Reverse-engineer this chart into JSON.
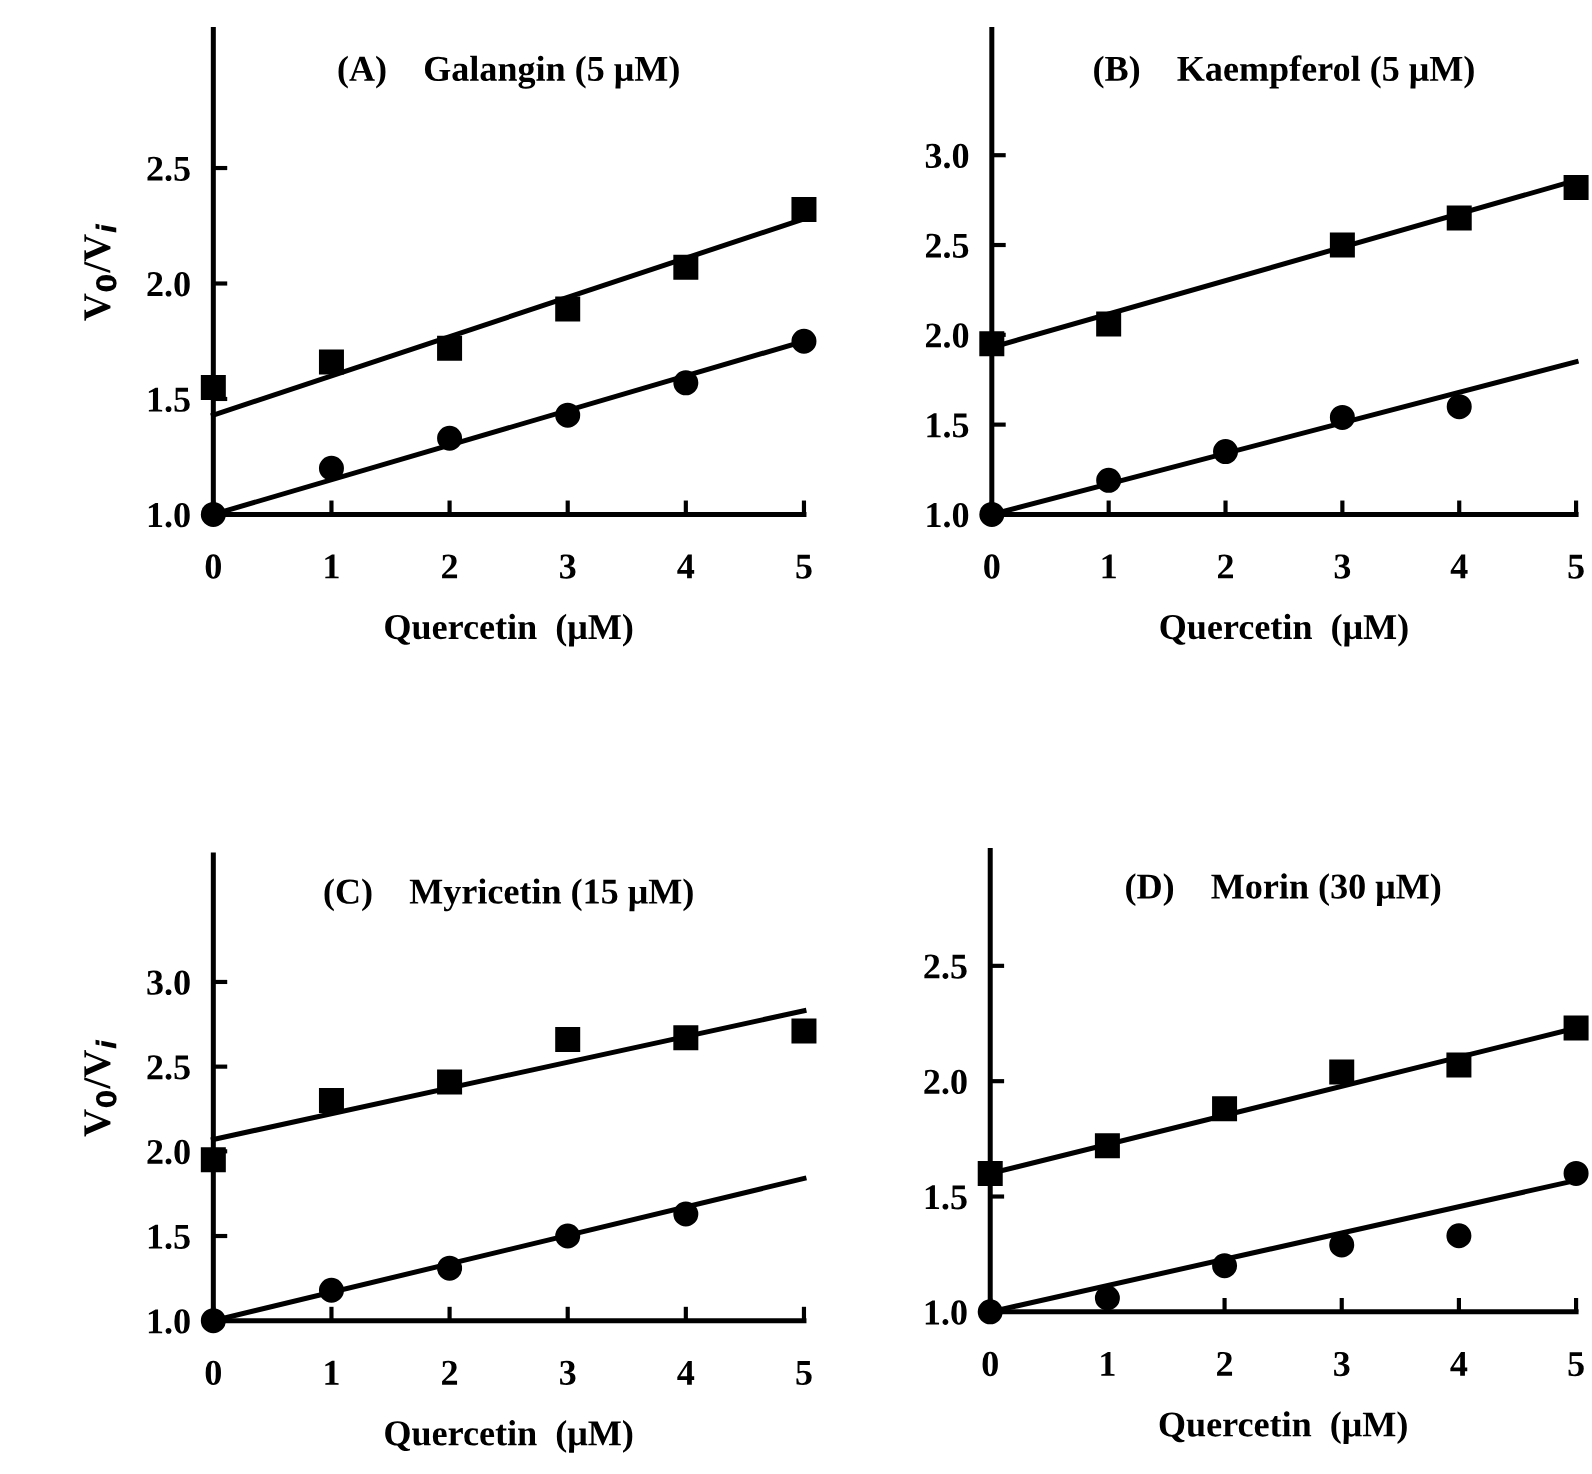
{
  "chart_data": [
    {
      "type": "scatter",
      "title": "(A)    Galangin (5 μM)",
      "xlabel": "Quercetin  (μM)",
      "ylabel": "V$_{0}$/V$_{i}$",
      "xlim": [
        0,
        5
      ],
      "ylim": [
        1.0,
        3.1
      ],
      "xticks": [
        0,
        1,
        2,
        3,
        4,
        5
      ],
      "yticks": [
        {
          "value": 1,
          "label": "1.0"
        },
        {
          "value": 1.5,
          "label": "1.5"
        },
        {
          "value": 2,
          "label": "2.0"
        },
        {
          "value": 2.5,
          "label": "2.5"
        }
      ],
      "grid": false,
      "legend": false,
      "series": [
        {
          "type": "scatter",
          "marker": "square",
          "color": "#000000",
          "x": [
            0,
            1,
            2,
            3,
            4,
            5
          ],
          "values": [
            1.55,
            1.66,
            1.72,
            1.89,
            2.07,
            2.32
          ]
        },
        {
          "type": "scatter",
          "marker": "circle",
          "color": "#000000",
          "x": [
            0,
            1,
            2,
            3,
            4,
            5
          ],
          "values": [
            1.0,
            1.2,
            1.33,
            1.43,
            1.57,
            1.75
          ]
        },
        {
          "type": "line",
          "marker": "none",
          "line_style": "solid",
          "color": "#000000",
          "x": [
            0,
            5
          ],
          "values": [
            1.43,
            2.28
          ]
        },
        {
          "type": "line",
          "marker": "none",
          "line_style": "solid",
          "color": "#000000",
          "x": [
            0,
            5
          ],
          "values": [
            1.0,
            1.75
          ]
        }
      ]
    },
    {
      "type": "scatter",
      "title": "(B)    Kaempferol (5 μM)",
      "xlabel": "Quercetin  (μM)",
      "xlim": [
        0,
        5
      ],
      "ylim": [
        1.0,
        3.7
      ],
      "xticks": [
        0,
        1,
        2,
        3,
        4,
        5
      ],
      "yticks": [
        {
          "value": 1,
          "label": "1.0"
        },
        {
          "value": 1.5,
          "label": "1.5"
        },
        {
          "value": 2,
          "label": "2.0"
        },
        {
          "value": 2.5,
          "label": "2.5"
        },
        {
          "value": 3,
          "label": "3.0"
        }
      ],
      "grid": false,
      "legend": false,
      "series": [
        {
          "type": "scatter",
          "marker": "square",
          "color": "#000000",
          "x": [
            0,
            1,
            3,
            4,
            5
          ],
          "values": [
            1.95,
            2.06,
            2.5,
            2.65,
            2.82
          ]
        },
        {
          "type": "scatter",
          "marker": "circle",
          "color": "#000000",
          "x": [
            0,
            1,
            2,
            3,
            4
          ],
          "values": [
            1.0,
            1.19,
            1.35,
            1.54,
            1.6
          ]
        },
        {
          "type": "line",
          "marker": "none",
          "line_style": "solid",
          "color": "#000000",
          "x": [
            0,
            5
          ],
          "values": [
            1.93,
            2.86
          ]
        },
        {
          "type": "line",
          "marker": "none",
          "line_style": "solid",
          "color": "#000000",
          "x": [
            0,
            5
          ],
          "values": [
            1.0,
            1.85
          ]
        }
      ]
    },
    {
      "type": "scatter",
      "title": "(C)    Myricetin (15 μM)",
      "xlabel": "Quercetin  (μM)",
      "ylabel": "V$_{0}$/V$_{i}$",
      "xlim": [
        0,
        5
      ],
      "ylim": [
        1.0,
        3.75
      ],
      "xticks": [
        0,
        1,
        2,
        3,
        4,
        5
      ],
      "yticks": [
        {
          "value": 1,
          "label": "1.0"
        },
        {
          "value": 1.5,
          "label": "1.5"
        },
        {
          "value": 2,
          "label": "2.0"
        },
        {
          "value": 2.5,
          "label": "2.5"
        },
        {
          "value": 3,
          "label": "3.0"
        }
      ],
      "grid": false,
      "legend": false,
      "series": [
        {
          "type": "scatter",
          "marker": "square",
          "color": "#000000",
          "x": [
            0,
            1,
            2,
            3,
            4,
            5
          ],
          "values": [
            1.95,
            2.3,
            2.41,
            2.66,
            2.67,
            2.71
          ]
        },
        {
          "type": "scatter",
          "marker": "circle",
          "color": "#000000",
          "x": [
            0,
            1,
            2,
            3,
            4
          ],
          "values": [
            1.0,
            1.18,
            1.31,
            1.5,
            1.63
          ]
        },
        {
          "type": "line",
          "marker": "none",
          "line_style": "solid",
          "color": "#000000",
          "x": [
            0,
            5
          ],
          "values": [
            2.07,
            2.83
          ]
        },
        {
          "type": "line",
          "marker": "none",
          "line_style": "solid",
          "color": "#000000",
          "x": [
            0,
            5
          ],
          "values": [
            1.0,
            1.84
          ]
        }
      ]
    },
    {
      "type": "scatter",
      "title": "(D)    Morin (30 μM)",
      "xlabel": "Quercetin  (μM)",
      "xlim": [
        0,
        5
      ],
      "ylim": [
        1.0,
        3.0
      ],
      "xticks": [
        0,
        1,
        2,
        3,
        4,
        5
      ],
      "yticks": [
        {
          "value": 1,
          "label": "1.0"
        },
        {
          "value": 1.5,
          "label": "1.5"
        },
        {
          "value": 2,
          "label": "2.0"
        },
        {
          "value": 2.5,
          "label": "2.5"
        }
      ],
      "grid": false,
      "legend": false,
      "series": [
        {
          "type": "scatter",
          "marker": "square",
          "color": "#000000",
          "x": [
            0,
            1,
            2,
            3,
            4,
            5
          ],
          "values": [
            1.6,
            1.72,
            1.88,
            2.04,
            2.07,
            2.23
          ]
        },
        {
          "type": "scatter",
          "marker": "circle",
          "color": "#000000",
          "x": [
            0,
            1,
            2,
            3,
            4,
            5
          ],
          "values": [
            1.0,
            1.06,
            1.2,
            1.29,
            1.33,
            1.6
          ]
        },
        {
          "type": "line",
          "marker": "none",
          "line_style": "solid",
          "color": "#000000",
          "x": [
            0,
            5
          ],
          "values": [
            1.6,
            2.23
          ]
        },
        {
          "type": "line",
          "marker": "none",
          "line_style": "solid",
          "color": "#000000",
          "x": [
            0,
            5
          ],
          "values": [
            1.0,
            1.57
          ]
        }
      ]
    }
  ]
}
